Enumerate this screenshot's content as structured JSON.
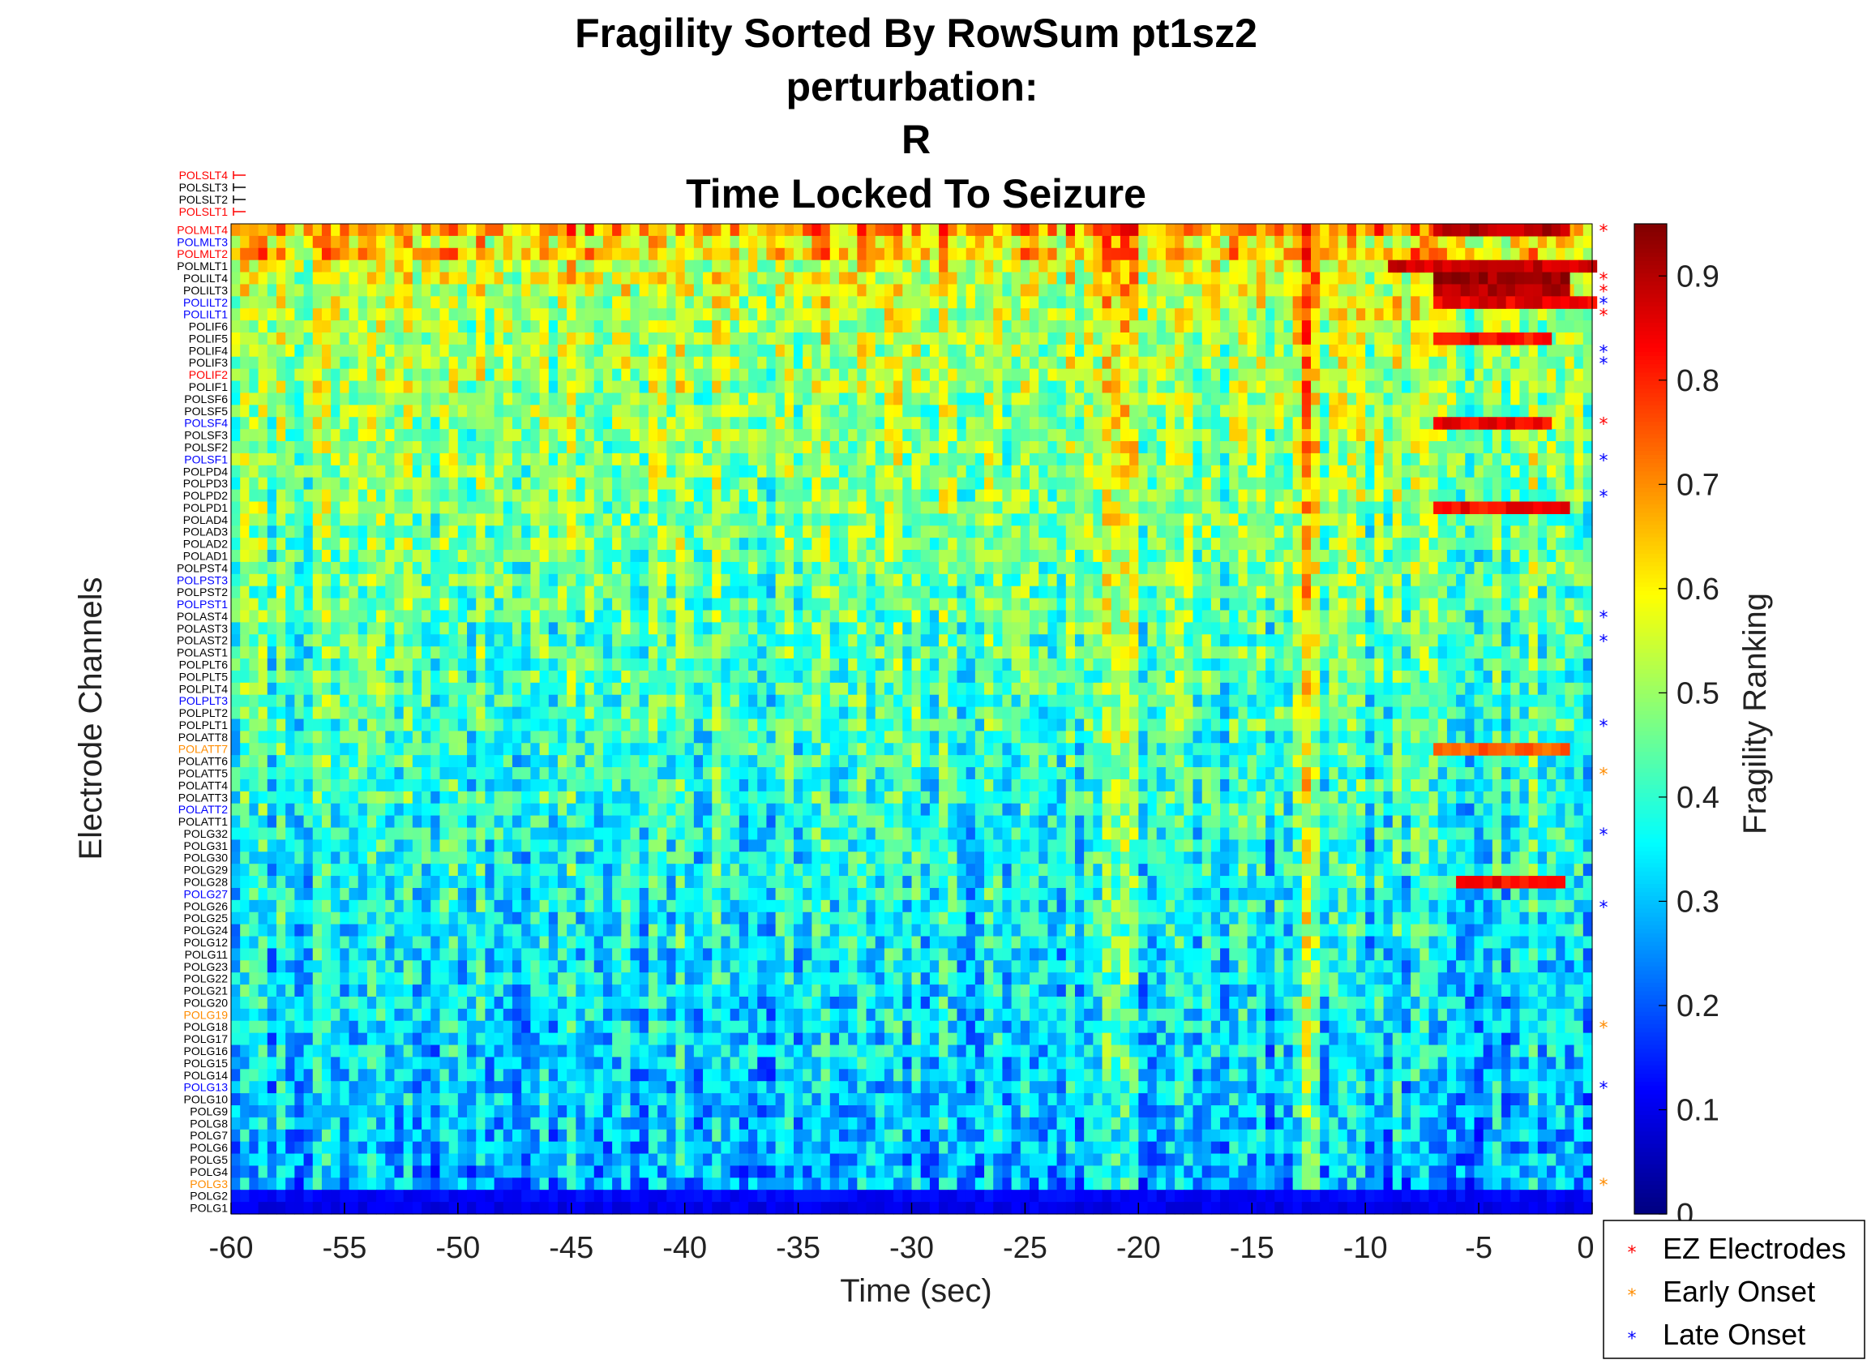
{
  "chart_data": {
    "type": "heatmap",
    "title": [
      "Fragility Sorted By RowSum pt1sz2",
      "perturbation:",
      "R",
      "Time Locked To Seizure"
    ],
    "xlabel": "Time (sec)",
    "ylabel": "Electrode Channels",
    "colorbar_label": "Fragility Ranking",
    "xlim": [
      -60,
      0
    ],
    "x_ticks": [
      -60,
      -55,
      -50,
      -45,
      -40,
      -35,
      -30,
      -25,
      -20,
      -15,
      -10,
      -5,
      0
    ],
    "clim": [
      0,
      0.95
    ],
    "colorbar_ticks": [
      0,
      0.1,
      0.2,
      0.3,
      0.4,
      0.5,
      0.6,
      0.7,
      0.8,
      0.9
    ],
    "colormap": "jet",
    "excluded_channels": [
      {
        "name": "POLSLT4",
        "color": "#ff0000"
      },
      {
        "name": "POLSLT3",
        "color": "#000000"
      },
      {
        "name": "POLSLT2",
        "color": "#000000"
      },
      {
        "name": "POLSLT1",
        "color": "#ff0000"
      }
    ],
    "channels": [
      {
        "name": "POLMLT4",
        "color": "#ff0000",
        "mean": 0.68
      },
      {
        "name": "POLMLT3",
        "color": "#0000ff",
        "mean": 0.6
      },
      {
        "name": "POLMLT2",
        "color": "#ff0000",
        "mean": 0.64
      },
      {
        "name": "POLMLT1",
        "color": "#000000",
        "mean": 0.56
      },
      {
        "name": "POLILT4",
        "color": "#000000",
        "mean": 0.56
      },
      {
        "name": "POLILT3",
        "color": "#000000",
        "mean": 0.55
      },
      {
        "name": "POLILT2",
        "color": "#0000ff",
        "mean": 0.54
      },
      {
        "name": "POLILT1",
        "color": "#0000ff",
        "mean": 0.53
      },
      {
        "name": "POLIF6",
        "color": "#000000",
        "mean": 0.52
      },
      {
        "name": "POLIF5",
        "color": "#000000",
        "mean": 0.52
      },
      {
        "name": "POLIF4",
        "color": "#000000",
        "mean": 0.51
      },
      {
        "name": "POLIF3",
        "color": "#000000",
        "mean": 0.51
      },
      {
        "name": "POLIF2",
        "color": "#ff0000",
        "mean": 0.5
      },
      {
        "name": "POLIF1",
        "color": "#000000",
        "mean": 0.5
      },
      {
        "name": "POLSF6",
        "color": "#000000",
        "mean": 0.5
      },
      {
        "name": "POLSF5",
        "color": "#000000",
        "mean": 0.49
      },
      {
        "name": "POLSF4",
        "color": "#0000ff",
        "mean": 0.49
      },
      {
        "name": "POLSF3",
        "color": "#000000",
        "mean": 0.49
      },
      {
        "name": "POLSF2",
        "color": "#000000",
        "mean": 0.48
      },
      {
        "name": "POLSF1",
        "color": "#0000ff",
        "mean": 0.48
      },
      {
        "name": "POLPD4",
        "color": "#000000",
        "mean": 0.48
      },
      {
        "name": "POLPD3",
        "color": "#000000",
        "mean": 0.47
      },
      {
        "name": "POLPD2",
        "color": "#000000",
        "mean": 0.47
      },
      {
        "name": "POLPD1",
        "color": "#000000",
        "mean": 0.47
      },
      {
        "name": "POLAD4",
        "color": "#000000",
        "mean": 0.46
      },
      {
        "name": "POLAD3",
        "color": "#000000",
        "mean": 0.46
      },
      {
        "name": "POLAD2",
        "color": "#000000",
        "mean": 0.46
      },
      {
        "name": "POLAD1",
        "color": "#000000",
        "mean": 0.45
      },
      {
        "name": "POLPST4",
        "color": "#000000",
        "mean": 0.45
      },
      {
        "name": "POLPST3",
        "color": "#0000ff",
        "mean": 0.45
      },
      {
        "name": "POLPST2",
        "color": "#000000",
        "mean": 0.44
      },
      {
        "name": "POLPST1",
        "color": "#0000ff",
        "mean": 0.44
      },
      {
        "name": "POLAST4",
        "color": "#000000",
        "mean": 0.44
      },
      {
        "name": "POLAST3",
        "color": "#000000",
        "mean": 0.43
      },
      {
        "name": "POLAST2",
        "color": "#000000",
        "mean": 0.43
      },
      {
        "name": "POLAST1",
        "color": "#000000",
        "mean": 0.43
      },
      {
        "name": "POLPLT6",
        "color": "#000000",
        "mean": 0.42
      },
      {
        "name": "POLPLT5",
        "color": "#000000",
        "mean": 0.42
      },
      {
        "name": "POLPLT4",
        "color": "#000000",
        "mean": 0.42
      },
      {
        "name": "POLPLT3",
        "color": "#0000ff",
        "mean": 0.41
      },
      {
        "name": "POLPLT2",
        "color": "#000000",
        "mean": 0.41
      },
      {
        "name": "POLPLT1",
        "color": "#000000",
        "mean": 0.41
      },
      {
        "name": "POLATT8",
        "color": "#000000",
        "mean": 0.4
      },
      {
        "name": "POLATT7",
        "color": "#ff8c00",
        "mean": 0.4
      },
      {
        "name": "POLATT6",
        "color": "#000000",
        "mean": 0.4
      },
      {
        "name": "POLATT5",
        "color": "#000000",
        "mean": 0.39
      },
      {
        "name": "POLATT4",
        "color": "#000000",
        "mean": 0.39
      },
      {
        "name": "POLATT3",
        "color": "#000000",
        "mean": 0.39
      },
      {
        "name": "POLATT2",
        "color": "#0000ff",
        "mean": 0.38
      },
      {
        "name": "POLATT1",
        "color": "#000000",
        "mean": 0.38
      },
      {
        "name": "POLG32",
        "color": "#000000",
        "mean": 0.38
      },
      {
        "name": "POLG31",
        "color": "#000000",
        "mean": 0.37
      },
      {
        "name": "POLG30",
        "color": "#000000",
        "mean": 0.37
      },
      {
        "name": "POLG29",
        "color": "#000000",
        "mean": 0.37
      },
      {
        "name": "POLG28",
        "color": "#000000",
        "mean": 0.36
      },
      {
        "name": "POLG27",
        "color": "#0000ff",
        "mean": 0.36
      },
      {
        "name": "POLG26",
        "color": "#000000",
        "mean": 0.36
      },
      {
        "name": "POLG25",
        "color": "#000000",
        "mean": 0.35
      },
      {
        "name": "POLG24",
        "color": "#000000",
        "mean": 0.35
      },
      {
        "name": "POLG12",
        "color": "#000000",
        "mean": 0.35
      },
      {
        "name": "POLG11",
        "color": "#000000",
        "mean": 0.34
      },
      {
        "name": "POLG23",
        "color": "#000000",
        "mean": 0.34
      },
      {
        "name": "POLG22",
        "color": "#000000",
        "mean": 0.34
      },
      {
        "name": "POLG21",
        "color": "#000000",
        "mean": 0.33
      },
      {
        "name": "POLG20",
        "color": "#000000",
        "mean": 0.33
      },
      {
        "name": "POLG19",
        "color": "#ff8c00",
        "mean": 0.33
      },
      {
        "name": "POLG18",
        "color": "#000000",
        "mean": 0.32
      },
      {
        "name": "POLG17",
        "color": "#000000",
        "mean": 0.32
      },
      {
        "name": "POLG16",
        "color": "#000000",
        "mean": 0.32
      },
      {
        "name": "POLG15",
        "color": "#000000",
        "mean": 0.31
      },
      {
        "name": "POLG14",
        "color": "#000000",
        "mean": 0.31
      },
      {
        "name": "POLG13",
        "color": "#0000ff",
        "mean": 0.31
      },
      {
        "name": "POLG10",
        "color": "#000000",
        "mean": 0.3
      },
      {
        "name": "POLG9",
        "color": "#000000",
        "mean": 0.3
      },
      {
        "name": "POLG8",
        "color": "#000000",
        "mean": 0.3
      },
      {
        "name": "POLG7",
        "color": "#000000",
        "mean": 0.29
      },
      {
        "name": "POLG6",
        "color": "#000000",
        "mean": 0.29
      },
      {
        "name": "POLG5",
        "color": "#000000",
        "mean": 0.29
      },
      {
        "name": "POLG4",
        "color": "#000000",
        "mean": 0.28
      },
      {
        "name": "POLG3",
        "color": "#ff8c00",
        "mean": 0.27
      },
      {
        "name": "POLG2",
        "color": "#000000",
        "mean": 0.12
      },
      {
        "name": "POLG1",
        "color": "#000000",
        "mean": 0.1
      }
    ],
    "markers": [
      {
        "channel": "POLMLT4",
        "type": "ez"
      },
      {
        "channel": "POLILT4",
        "type": "ez"
      },
      {
        "channel": "POLILT3",
        "type": "ez"
      },
      {
        "channel": "POLILT2",
        "type": "late"
      },
      {
        "channel": "POLILT1",
        "type": "ez"
      },
      {
        "channel": "POLIF4",
        "type": "late"
      },
      {
        "channel": "POLIF3",
        "type": "late"
      },
      {
        "channel": "POLSF4",
        "type": "ez"
      },
      {
        "channel": "POLSF1",
        "type": "late"
      },
      {
        "channel": "POLPD2",
        "type": "late"
      },
      {
        "channel": "POLAST4",
        "type": "late"
      },
      {
        "channel": "POLAST2",
        "type": "late"
      },
      {
        "channel": "POLPLT1",
        "type": "late"
      },
      {
        "channel": "POLATT5",
        "type": "early"
      },
      {
        "channel": "POLG32",
        "type": "late"
      },
      {
        "channel": "POLG26",
        "type": "late"
      },
      {
        "channel": "POLG18",
        "type": "early"
      },
      {
        "channel": "POLG13",
        "type": "late"
      },
      {
        "channel": "POLG3",
        "type": "early"
      }
    ],
    "high_bands": [
      {
        "channel": "POLMLT4",
        "t_start": -7,
        "t_end": -1,
        "value": 0.9
      },
      {
        "channel": "POLMLT1",
        "t_start": -9,
        "t_end": 0,
        "value": 0.88
      },
      {
        "channel": "POLILT4",
        "t_start": -7,
        "t_end": -1,
        "value": 0.92
      },
      {
        "channel": "POLILT3",
        "t_start": -7,
        "t_end": -1,
        "value": 0.9
      },
      {
        "channel": "POLILT2",
        "t_start": -7,
        "t_end": 0,
        "value": 0.85
      },
      {
        "channel": "POLIF5",
        "t_start": -7,
        "t_end": -2,
        "value": 0.82
      },
      {
        "channel": "POLSF4",
        "t_start": -7,
        "t_end": -2,
        "value": 0.84
      },
      {
        "channel": "POLPD1",
        "t_start": -7,
        "t_end": -1,
        "value": 0.83
      },
      {
        "channel": "POLATT7",
        "t_start": -7,
        "t_end": -1,
        "value": 0.74
      },
      {
        "channel": "POLG28",
        "t_start": -6,
        "t_end": -1,
        "value": 0.83
      }
    ],
    "legend": {
      "position": "bottom-right",
      "entries": [
        {
          "key": "ez",
          "label": "EZ Electrodes",
          "color": "#ff0000"
        },
        {
          "key": "early",
          "label": "Early Onset",
          "color": "#ff8c00"
        },
        {
          "key": "late",
          "label": "Late Onset",
          "color": "#0000ff"
        }
      ]
    }
  }
}
